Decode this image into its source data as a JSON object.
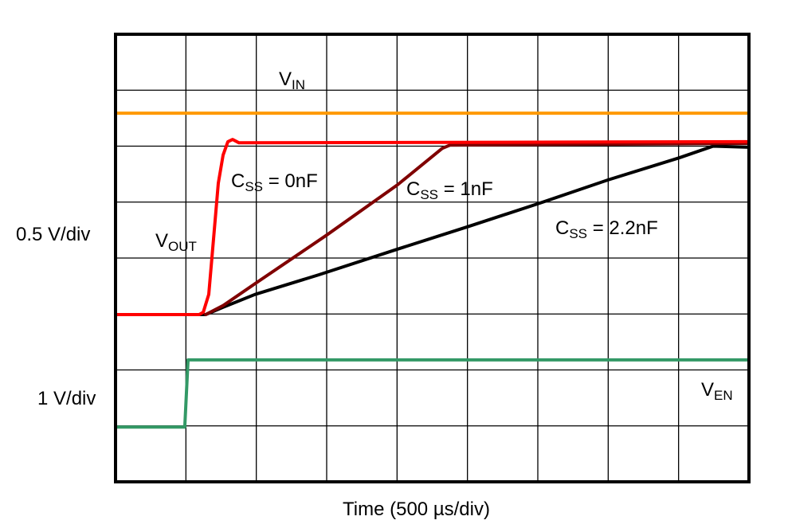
{
  "chart_data": {
    "type": "line",
    "title": "",
    "xlabel": "Time (500 µs/div)",
    "y_scale_labels": [
      "0.5 V/div",
      "1 V/div"
    ],
    "x_units": "µs",
    "y_units": "div",
    "xlim": [
      0,
      4500
    ],
    "ylim": [
      0,
      8
    ],
    "x_divisions": 9,
    "y_divisions": 8,
    "grid": true,
    "series": [
      {
        "name": "VIN",
        "label_main": "V",
        "label_sub": "IN",
        "color": "#ff9900",
        "points": [
          [
            0,
            6.59
          ],
          [
            4500,
            6.59
          ]
        ]
      },
      {
        "name": "CSS = 0nF",
        "label_main": "C",
        "label_sub": "SS",
        "label_rest": " = 0nF",
        "color": "#ff0000",
        "points": [
          [
            0,
            2.99
          ],
          [
            594,
            2.99
          ],
          [
            623,
            3.03
          ],
          [
            662,
            3.35
          ],
          [
            696,
            4.34
          ],
          [
            730,
            5.34
          ],
          [
            764,
            5.84
          ],
          [
            798,
            6.08
          ],
          [
            832,
            6.12
          ],
          [
            877,
            6.06
          ],
          [
            4500,
            6.08
          ]
        ]
      },
      {
        "name": "CSS = 1nF",
        "label_main": "C",
        "label_sub": "SS",
        "label_rest": " = 1nF",
        "color": "#800000",
        "points": [
          [
            640,
            2.99
          ],
          [
            764,
            3.15
          ],
          [
            1002,
            3.56
          ],
          [
            1500,
            4.41
          ],
          [
            2004,
            5.31
          ],
          [
            2321,
            5.96
          ],
          [
            2377,
            6.02
          ],
          [
            4500,
            6.05
          ]
        ]
      },
      {
        "name": "CSS = 2.2nF",
        "label_main": "C",
        "label_sub": "SS",
        "label_rest": " = 2.2nF",
        "color": "#000000",
        "points": [
          [
            0,
            2.99
          ],
          [
            640,
            2.99
          ],
          [
            764,
            3.12
          ],
          [
            991,
            3.35
          ],
          [
            1443,
            3.7
          ],
          [
            2004,
            4.16
          ],
          [
            2502,
            4.56
          ],
          [
            3000,
            4.97
          ],
          [
            3504,
            5.4
          ],
          [
            4002,
            5.79
          ],
          [
            4246,
            6.0
          ],
          [
            4500,
            5.98
          ]
        ]
      },
      {
        "name": "VEN",
        "label_main": "V",
        "label_sub": "EN",
        "color": "#339966",
        "points": [
          [
            0,
            0.98
          ],
          [
            492,
            0.98
          ],
          [
            515,
            2.18
          ],
          [
            4500,
            2.18
          ]
        ]
      }
    ],
    "annotations": {
      "vout": {
        "main": "V",
        "sub": "OUT"
      }
    }
  }
}
